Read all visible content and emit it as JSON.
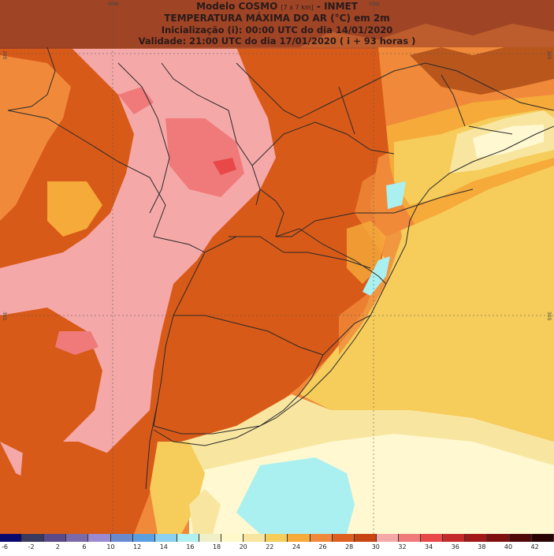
{
  "header": {
    "line1_prefix": "Modelo COSMO",
    "line1_small": "[7 x 7 km]",
    "line1_suffix": " - INMET",
    "line2": "TEMPERATURA MÁXIMA DO AR (°C) em 2m",
    "line3": "Inicialização (i): 00:00 UTC do dia 14/01/2020",
    "line4": "Validade: 21:00 UTC do dia 17/01/2020 ( i + 93 horas )"
  },
  "coordinates": {
    "top": [
      "60W",
      "50W"
    ],
    "left": [
      "20S",
      "30S"
    ],
    "right": [
      "20S",
      "30S"
    ]
  },
  "colorbar": {
    "ticks": [
      "-6",
      "-2",
      "2",
      "6",
      "10",
      "12",
      "14",
      "16",
      "18",
      "20",
      "22",
      "24",
      "26",
      "28",
      "30",
      "32",
      "34",
      "36",
      "38",
      "40",
      "42"
    ],
    "colors": [
      "#0a0a6e",
      "#3a3a5e",
      "#5a4a8a",
      "#7a6aaa",
      "#9a8ad0",
      "#6a8ad0",
      "#5aa0e0",
      "#8ad0f0",
      "#b0f0f0",
      "#f0f0c8",
      "#fff8c8",
      "#f8e6a0",
      "#f6cc5a",
      "#f5aa3a",
      "#f08a3a",
      "#de6020",
      "#c84410",
      "#f5a8a8",
      "#f07a7a",
      "#e84848",
      "#c42a2a",
      "#a01818",
      "#801010",
      "#500808",
      "#2a0404"
    ],
    "palette_map": {
      "t20": "#fff8d0",
      "t22": "#f8e6a0",
      "t24": "#f6cc5a",
      "t26": "#f5aa3a",
      "t28": "#f08a3a",
      "t30": "#d85a18",
      "t32": "#f5a8a8",
      "t34": "#f07a7a",
      "cold": "#aaf0f0",
      "dark": "#a04010"
    }
  }
}
